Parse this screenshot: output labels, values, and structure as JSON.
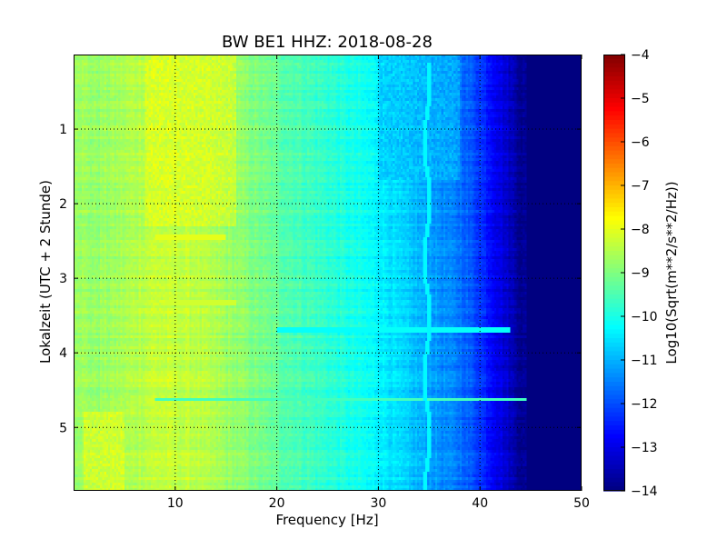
{
  "chart_data": {
    "type": "heatmap",
    "title": "BW BE1 HHZ: 2018-08-28",
    "xlabel": "Frequency [Hz]",
    "ylabel": "Lokalzeit (UTC + 2 Stunde)",
    "xlim": [
      0,
      50
    ],
    "ylim": [
      5.85,
      0
    ],
    "x_ticks": [
      10,
      20,
      30,
      40,
      50
    ],
    "x_tick_labels": [
      "10",
      "20",
      "30",
      "40",
      "50"
    ],
    "y_ticks": [
      1,
      2,
      3,
      4,
      5
    ],
    "y_tick_labels": [
      "1",
      "2",
      "3",
      "4",
      "5"
    ],
    "y_inverted": true,
    "grid": true,
    "grid_style": "dotted",
    "colormap": "jet",
    "colorbar": {
      "label": "Log10(Sqrt(m**2/s**2/Hz))",
      "range": [
        -14,
        -4
      ],
      "ticks": [
        -4,
        -5,
        -6,
        -7,
        -8,
        -9,
        -10,
        -11,
        -12,
        -13,
        -14
      ],
      "tick_labels": [
        "−4",
        "−5",
        "−6",
        "−7",
        "−8",
        "−9",
        "−10",
        "−11",
        "−12",
        "−13",
        "−14"
      ]
    },
    "frequency_profile": {
      "frequency_hz": [
        0,
        2,
        5,
        8,
        12,
        16,
        20,
        25,
        30,
        33,
        36,
        38,
        40,
        42,
        44,
        46,
        50
      ],
      "log_psd": [
        -8.6,
        -8.8,
        -8.6,
        -8.3,
        -8.4,
        -8.8,
        -9.3,
        -9.8,
        -10.3,
        -10.8,
        -11.3,
        -11.6,
        -12.2,
        -13.0,
        -13.8,
        -14.0,
        -14.0
      ]
    },
    "features": [
      {
        "type": "band",
        "f_range_hz": [
          7,
          16
        ],
        "t_range_h": [
          0,
          2.3
        ],
        "log_psd": -8.0
      },
      {
        "type": "band",
        "f_range_hz": [
          30,
          38
        ],
        "t_range_h": [
          0,
          1.7
        ],
        "log_psd": -10.9
      },
      {
        "type": "band",
        "f_range_hz": [
          1,
          5
        ],
        "t_range_h": [
          4.8,
          5.85
        ],
        "log_psd": -7.9
      },
      {
        "type": "line",
        "t_h": 2.45,
        "f_range_hz": [
          8,
          15
        ],
        "log_psd": -8.0
      },
      {
        "type": "line",
        "t_h": 3.33,
        "f_range_hz": [
          9,
          16
        ],
        "log_psd": -8.2
      },
      {
        "type": "line",
        "t_h": 3.7,
        "f_range_hz": [
          20,
          43
        ],
        "log_psd": -10.2
      },
      {
        "type": "line",
        "t_h": 4.62,
        "f_range_hz": [
          8,
          45
        ],
        "log_psd": -9.6
      },
      {
        "type": "tone",
        "f_hz": 34.8,
        "t_range_h": [
          0.1,
          5.85
        ],
        "log_psd": -10.3
      }
    ]
  }
}
